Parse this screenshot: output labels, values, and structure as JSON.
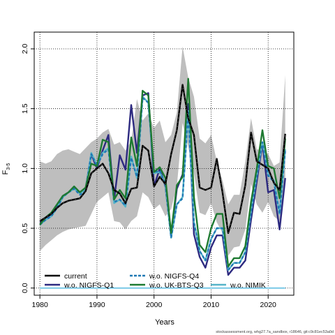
{
  "chart_data": {
    "type": "line",
    "xlabel": "Years",
    "ylabel_main": "F",
    "ylabel_sub": "3-5",
    "xlim": [
      1979,
      2024.5
    ],
    "ylim": [
      -0.06,
      2.14
    ],
    "xticks": [
      1980,
      1990,
      2000,
      2010,
      2020
    ],
    "yticks": [
      0.0,
      0.5,
      1.0,
      1.5,
      2.0
    ],
    "xtick_labels": [
      "1980",
      "1990",
      "2000",
      "2010",
      "2020"
    ],
    "ytick_labels": [
      "0.0",
      "0.5",
      "1.0",
      "1.5",
      "2.0"
    ],
    "grid": true,
    "legend_position": "bottom",
    "years": [
      1980,
      1981,
      1982,
      1983,
      1984,
      1985,
      1986,
      1987,
      1988,
      1989,
      1990,
      1991,
      1992,
      1993,
      1994,
      1995,
      1996,
      1997,
      1998,
      1999,
      2000,
      2001,
      2002,
      2003,
      2004,
      2005,
      2006,
      2007,
      2008,
      2009,
      2010,
      2011,
      2012,
      2013,
      2014,
      2015,
      2016,
      2017,
      2018,
      2019,
      2020,
      2021,
      2022,
      2023
    ],
    "confidence_band": {
      "upper": [
        1.06,
        1.04,
        1.06,
        1.12,
        1.15,
        1.16,
        1.14,
        1.12,
        1.17,
        1.22,
        1.25,
        1.3,
        1.33,
        1.2,
        1.22,
        1.15,
        1.23,
        1.58,
        1.4,
        1.46,
        1.34,
        1.4,
        1.22,
        1.28,
        1.47,
        2.02,
        1.76,
        1.6,
        1.25,
        1.21,
        1.28,
        1.06,
        0.9,
        0.7,
        0.78,
        0.78,
        1.06,
        1.42,
        1.16,
        1.15,
        1.12,
        1.02,
        1.05,
        1.78
      ],
      "lower": [
        0.31,
        0.36,
        0.4,
        0.44,
        0.47,
        0.49,
        0.5,
        0.51,
        0.52,
        0.62,
        0.72,
        0.76,
        0.8,
        0.56,
        0.55,
        0.49,
        0.56,
        0.6,
        0.8,
        0.76,
        0.66,
        0.7,
        0.6,
        0.66,
        0.85,
        1.38,
        1.18,
        0.96,
        0.63,
        0.61,
        0.71,
        0.55,
        0.46,
        0.27,
        0.34,
        0.35,
        0.49,
        0.87,
        0.7,
        0.63,
        0.72,
        0.6,
        0.56,
        0.88
      ]
    },
    "series": [
      {
        "name": "current",
        "color": "#000000",
        "dash": "solid",
        "values": [
          0.56,
          0.59,
          0.62,
          0.67,
          0.71,
          0.73,
          0.74,
          0.75,
          0.81,
          0.96,
          1.0,
          1.04,
          0.96,
          0.82,
          0.79,
          0.71,
          0.83,
          0.84,
          1.19,
          1.15,
          0.85,
          0.93,
          0.87,
          1.12,
          1.32,
          1.7,
          1.42,
          1.28,
          0.84,
          0.82,
          0.84,
          1.08,
          0.8,
          0.46,
          0.63,
          0.62,
          0.86,
          1.3,
          1.06,
          1.03,
          1.0,
          0.88,
          0.82,
          1.29
        ]
      },
      {
        "name": "w.o. NIGFS-Q1",
        "color": "#2d2a80",
        "dash": "solid",
        "values": [
          0.55,
          0.58,
          0.61,
          0.68,
          0.77,
          0.8,
          0.84,
          0.79,
          0.83,
          1.12,
          1.0,
          1.15,
          1.28,
          0.74,
          1.11,
          0.99,
          1.53,
          1.13,
          1.61,
          1.63,
          0.85,
          1.0,
          0.85,
          0.43,
          0.83,
          0.95,
          1.54,
          0.45,
          0.26,
          0.17,
          0.34,
          0.44,
          0.44,
          0.11,
          0.17,
          0.17,
          0.23,
          0.57,
          0.89,
          1.21,
          0.8,
          0.82,
          0.49,
          0.92
        ]
      },
      {
        "name": "w.o. NIGFS-Q4",
        "color": "#1f78b4",
        "dash": "dashed",
        "values": [
          0.53,
          0.57,
          0.6,
          0.67,
          0.76,
          0.8,
          0.83,
          0.78,
          0.81,
          1.12,
          1.02,
          1.12,
          1.16,
          0.72,
          0.74,
          0.69,
          1.09,
          0.93,
          1.59,
          1.55,
          0.97,
          0.98,
          0.87,
          0.42,
          0.7,
          0.75,
          1.47,
          0.55,
          0.31,
          0.23,
          0.41,
          0.5,
          0.5,
          0.15,
          0.21,
          0.21,
          0.3,
          0.64,
          0.94,
          1.22,
          0.94,
          0.89,
          0.62,
          1.15
        ]
      },
      {
        "name": "w.o. NIMIK",
        "color": "#56b4c8",
        "dash": "solid",
        "values": [
          0.53,
          0.57,
          0.6,
          0.67,
          0.76,
          0.8,
          0.83,
          0.79,
          0.82,
          1.13,
          1.03,
          1.13,
          1.17,
          0.71,
          0.74,
          0.68,
          1.1,
          0.92,
          1.6,
          1.55,
          0.96,
          0.97,
          0.86,
          0.42,
          0.7,
          0.76,
          1.48,
          0.55,
          0.31,
          0.23,
          0.41,
          0.5,
          0.5,
          0.15,
          0.21,
          0.21,
          0.3,
          0.64,
          0.94,
          1.22,
          0.95,
          0.9,
          0.62,
          1.16
        ]
      },
      {
        "name": "w.o. UK-BTS-Q3",
        "color": "#1e7a31",
        "dash": "solid",
        "values": [
          0.53,
          0.59,
          0.63,
          0.7,
          0.77,
          0.8,
          0.85,
          0.8,
          0.84,
          1.04,
          1.02,
          1.24,
          1.22,
          0.74,
          0.82,
          0.75,
          1.26,
          1.02,
          1.65,
          1.61,
          0.97,
          1.01,
          0.92,
          0.46,
          0.86,
          0.93,
          1.75,
          0.76,
          0.36,
          0.3,
          0.5,
          0.62,
          0.62,
          0.18,
          0.25,
          0.25,
          0.35,
          0.72,
          1.0,
          1.32,
          1.02,
          1.0,
          0.75,
          1.25
        ]
      }
    ],
    "hline": {
      "value": 0.0,
      "color": "#78c8e6"
    }
  },
  "footer_text": "stockassessment.org, whg27.7a_sandbox, r18646, git:c9c81ec53a0d"
}
